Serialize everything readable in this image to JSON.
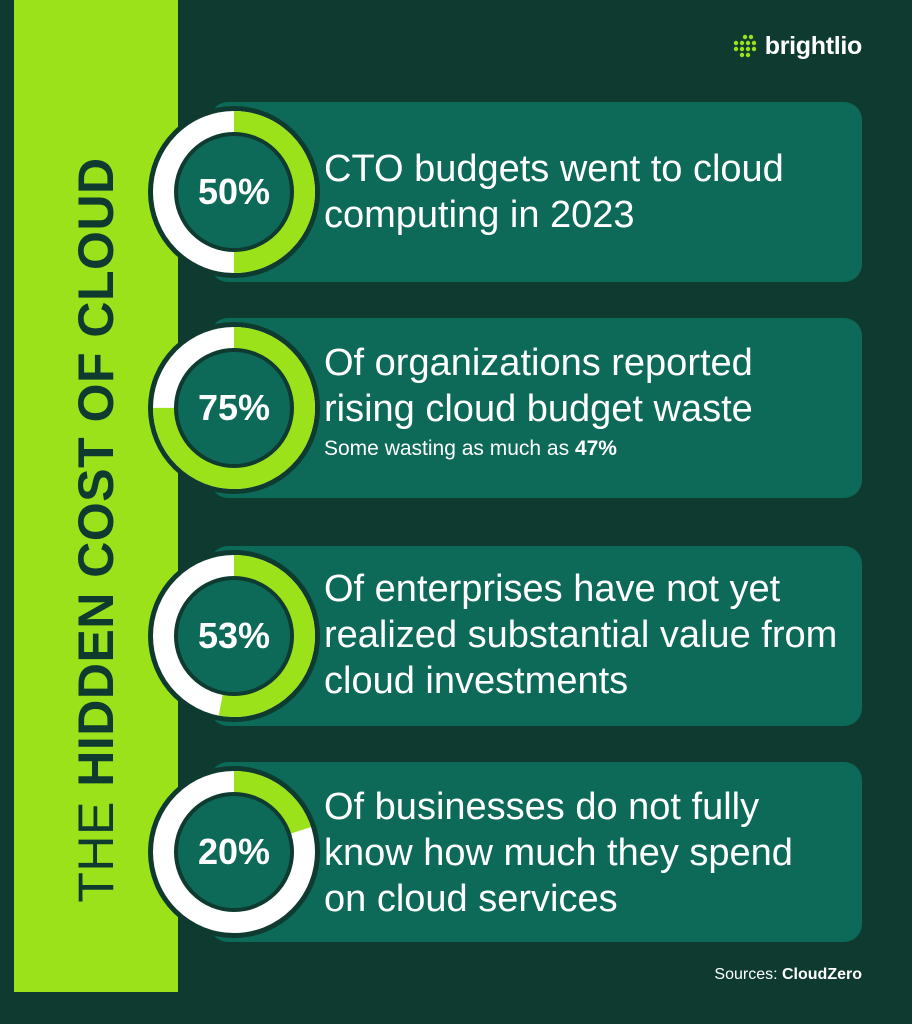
{
  "brand": {
    "name": "brightlio",
    "accent": "#9be21b",
    "background": "#0e3a30",
    "card": "#0d6a59"
  },
  "title": {
    "light_part": "THE ",
    "bold_part": "HIDDEN COST OF CLOUD"
  },
  "stats": [
    {
      "percent": "50%",
      "value": 50,
      "text": "CTO budgets went to cloud computing in 2023",
      "sub_prefix": "",
      "sub_bold": ""
    },
    {
      "percent": "75%",
      "value": 75,
      "text": "Of organizations reported rising cloud budget waste",
      "sub_prefix": "Some wasting as much as ",
      "sub_bold": "47%"
    },
    {
      "percent": "53%",
      "value": 53,
      "text": "Of enterprises have not yet realized substantial value from cloud investments",
      "sub_prefix": "",
      "sub_bold": ""
    },
    {
      "percent": "20%",
      "value": 20,
      "text": "Of businesses do not fully know how much they spend on cloud services",
      "sub_prefix": "",
      "sub_bold": ""
    }
  ],
  "sources": {
    "label": "Sources: ",
    "name": "CloudZero"
  }
}
